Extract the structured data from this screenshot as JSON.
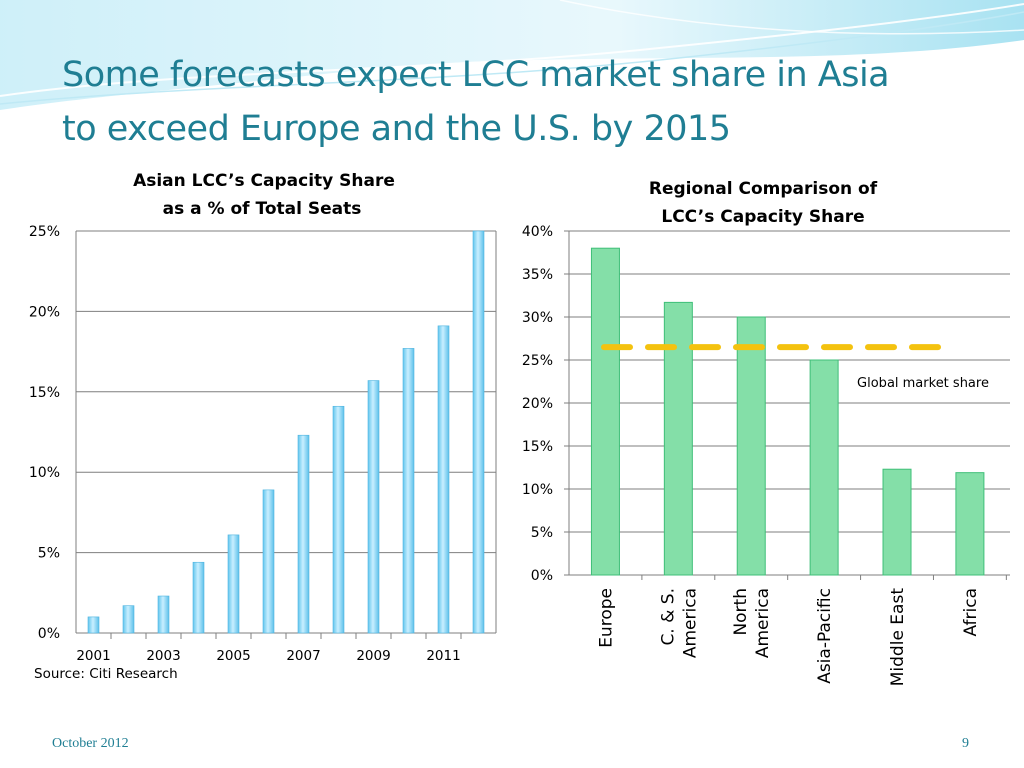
{
  "slide": {
    "title_line1": "Some forecasts expect LCC market share in Asia",
    "title_line2": "to exceed Europe and the U.S. by 2015",
    "source": "Source:  Citi Research",
    "footer_date": "October 2012",
    "page_number": "9"
  },
  "colors": {
    "title": "#1f7e93",
    "bar_blue": "#8fdcf6",
    "bar_blue_edge": "#4fb4df",
    "bar_green": "#84dfa8",
    "bar_green_edge": "#3fbf78",
    "global_line": "#f4c20f",
    "gridline": "#7f7f7f"
  },
  "chart_data": [
    {
      "type": "bar",
      "title_line1": "Asian LCC’s Capacity Share",
      "title_line2": "as a % of Total Seats",
      "x": [
        2001,
        2002,
        2003,
        2004,
        2005,
        2006,
        2007,
        2008,
        2009,
        2010,
        2011,
        2012
      ],
      "x_tick_labels": [
        "2001",
        "",
        "2003",
        "",
        "2005",
        "",
        "2007",
        "",
        "2009",
        "",
        "2011",
        ""
      ],
      "values": [
        1.0,
        1.7,
        2.3,
        4.4,
        6.1,
        8.9,
        12.3,
        14.1,
        15.7,
        17.7,
        19.1,
        25.0
      ],
      "ylim": [
        0,
        25
      ],
      "yticks": [
        0,
        5,
        10,
        15,
        20,
        25
      ],
      "ytick_labels": [
        "0%",
        "5%",
        "10%",
        "15%",
        "20%",
        "25%"
      ],
      "xlabel": "",
      "ylabel": "",
      "grid": true
    },
    {
      "type": "bar",
      "title_line1": "Regional Comparison of",
      "title_line2": "LCC’s Capacity Share",
      "categories": [
        "Europe",
        "C. & S. America",
        "North America",
        "Asia-Pacific",
        "Middle East",
        "Africa"
      ],
      "category_label_lines": [
        [
          "Europe"
        ],
        [
          "C. & S.",
          "America"
        ],
        [
          "North",
          "America"
        ],
        [
          "Asia-Pacific"
        ],
        [
          "Middle East"
        ],
        [
          "Africa"
        ]
      ],
      "values": [
        38.0,
        31.7,
        30.0,
        25.0,
        12.3,
        11.9
      ],
      "reference_line": {
        "label": "Global market share",
        "value": 26.5,
        "style": "dashed"
      },
      "ylim": [
        0,
        40
      ],
      "yticks": [
        0,
        5,
        10,
        15,
        20,
        25,
        30,
        35,
        40
      ],
      "ytick_labels": [
        "0%",
        "5%",
        "10%",
        "15%",
        "20%",
        "25%",
        "30%",
        "35%",
        "40%"
      ],
      "xlabel": "",
      "ylabel": "",
      "grid": true
    }
  ]
}
